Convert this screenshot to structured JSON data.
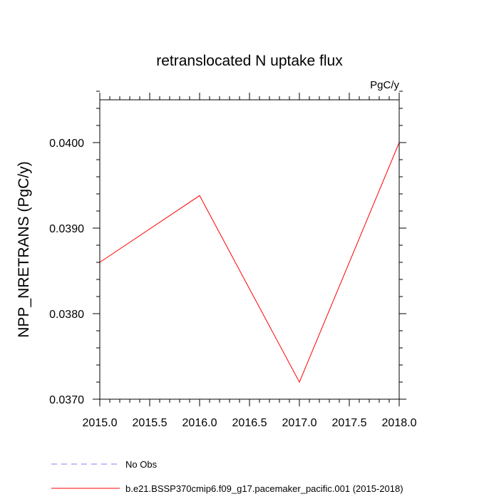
{
  "chart_data": {
    "type": "line",
    "title": "retranslocated N uptake flux",
    "units_label": "PgC/y",
    "xlabel": "",
    "ylabel": "NPP_NRETRANS  (PgC/y)",
    "xlim": [
      2015.0,
      2018.0
    ],
    "ylim": [
      0.037,
      0.0405
    ],
    "x_ticks": [
      "2015.0",
      "2015.5",
      "2016.0",
      "2016.5",
      "2017.0",
      "2017.5",
      "2018.0"
    ],
    "y_ticks": [
      "0.0370",
      "0.0380",
      "0.0390",
      "0.0400"
    ],
    "grid": false,
    "legend_position": "bottom-left",
    "series": [
      {
        "name": "b.e21.BSSP370cmip6.f09_g17.pacemaker_pacific.001 (2015-2018)",
        "color": "#ff0000",
        "line_style": "solid",
        "x": [
          2015,
          2016,
          2017,
          2018
        ],
        "values": [
          0.0386,
          0.03938,
          0.0372,
          0.04
        ]
      },
      {
        "name": "No Obs",
        "color": "#8080ff",
        "line_style": "dashed",
        "x": [],
        "values": []
      }
    ]
  }
}
